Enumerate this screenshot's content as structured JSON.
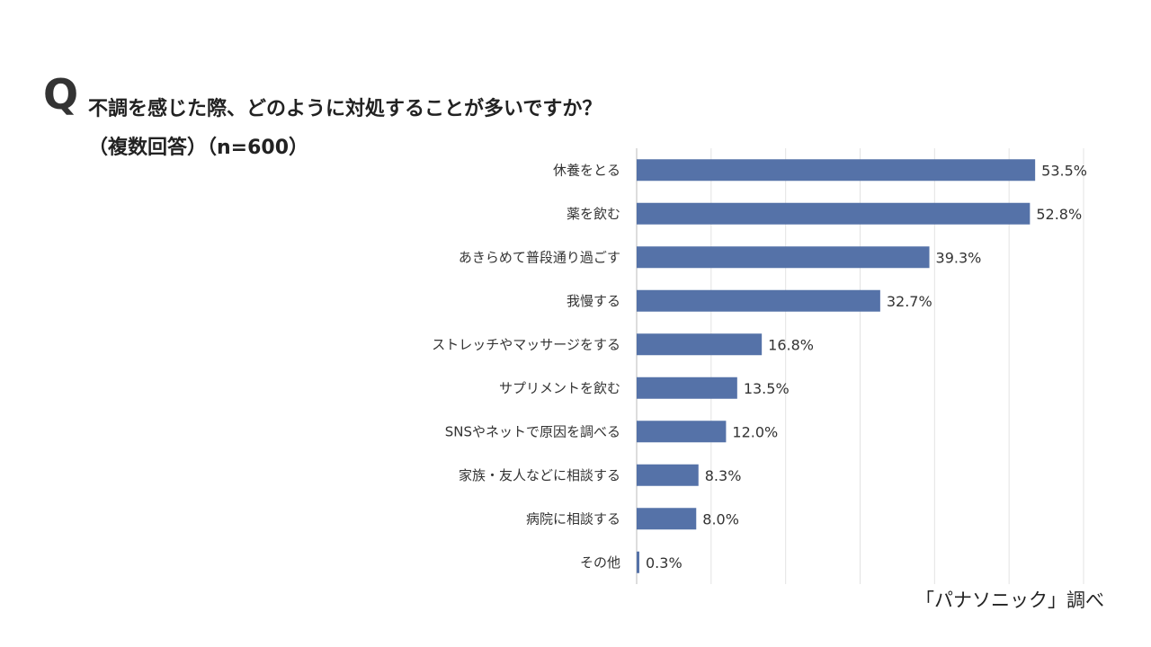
{
  "question": {
    "mark": "Q",
    "title": "不調を感じた際、どのように対処することが多いですか？",
    "subtitle": "（複数回答）（n=600）"
  },
  "source": "「パナソニック」調べ",
  "chart_data": {
    "type": "bar",
    "orientation": "horizontal",
    "categories": [
      "休養をとる",
      "薬を飲む",
      "あきらめて普段通り過ごす",
      "我慢する",
      "ストレッチやマッサージをする",
      "サプリメントを飲む",
      "SNSやネットで原因を調べる",
      "家族・友人などに相談する",
      "病院に相談する",
      "その他"
    ],
    "values": [
      53.5,
      52.8,
      39.3,
      32.7,
      16.8,
      13.5,
      12.0,
      8.3,
      8.0,
      0.3
    ],
    "value_labels": [
      "53.5%",
      "52.8%",
      "39.3%",
      "32.7%",
      "16.8%",
      "13.5%",
      "12.0%",
      "8.3%",
      "8.0%",
      "0.3%"
    ],
    "xlim": [
      0,
      60
    ],
    "grid": true,
    "bar_color": "#5572a8"
  }
}
